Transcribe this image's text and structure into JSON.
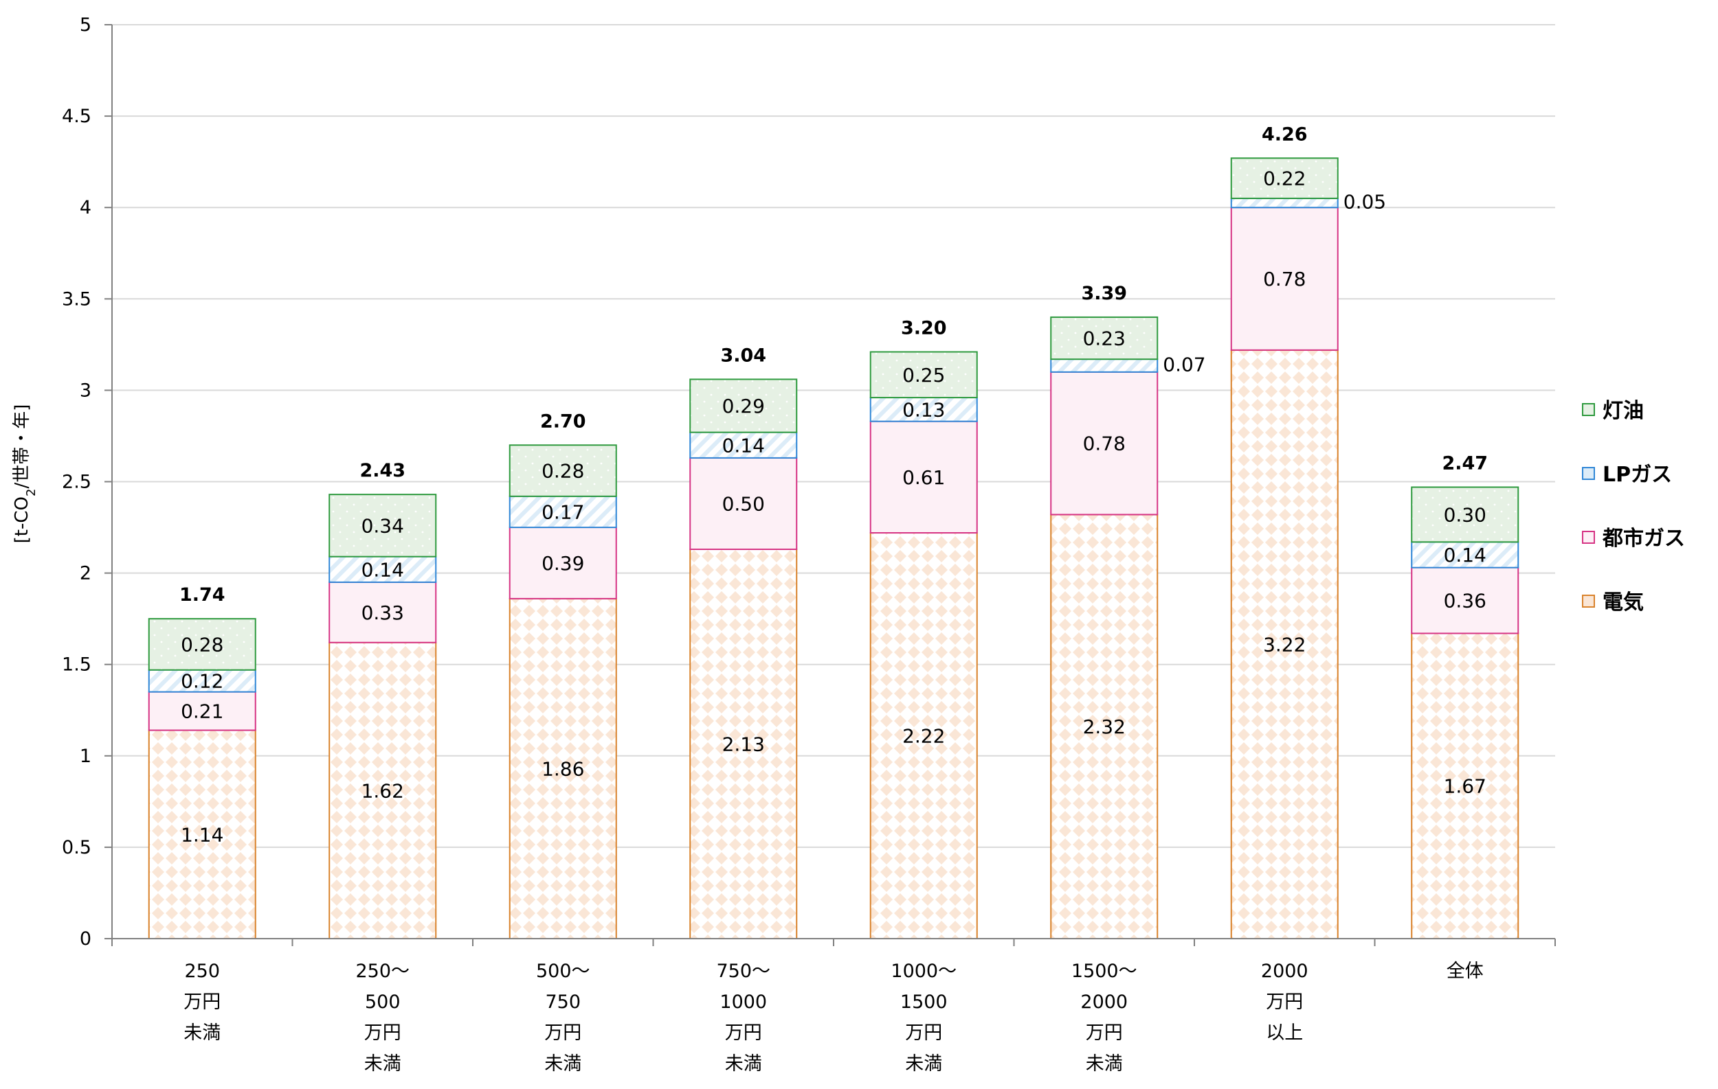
{
  "chart_data": {
    "type": "bar",
    "stacked": true,
    "title": "",
    "xlabel": "",
    "ylabel": "[t-CO2/世帯・年]",
    "ylabel_parts": {
      "pre": "[t-CO",
      "sub": "2",
      "post": "/世帯・年]"
    },
    "ylim": [
      0,
      5
    ],
    "yticks": [
      "0",
      "0.5",
      "1",
      "1.5",
      "2",
      "2.5",
      "3",
      "3.5",
      "4",
      "4.5",
      "5"
    ],
    "ytick_values": [
      0,
      0.5,
      1,
      1.5,
      2,
      2.5,
      3,
      3.5,
      4,
      4.5,
      5
    ],
    "grid": true,
    "legend_position": "right",
    "categories": [
      [
        "250",
        "万円",
        "未満"
      ],
      [
        "250～",
        "500",
        "万円",
        "未満"
      ],
      [
        "500～",
        "750",
        "万円",
        "未満"
      ],
      [
        "750～",
        "1000",
        "万円",
        "未満"
      ],
      [
        "1000～",
        "1500",
        "万円",
        "未満"
      ],
      [
        "1500～",
        "2000",
        "万円",
        "未満"
      ],
      [
        "2000",
        "万円",
        "以上"
      ],
      [
        "全体"
      ]
    ],
    "series": [
      {
        "name": "電気",
        "color": "#d9822b",
        "fill": "#fae6d6",
        "pattern": "diamond",
        "values": [
          1.14,
          1.62,
          1.86,
          2.13,
          2.22,
          2.32,
          3.22,
          1.67
        ],
        "labels": [
          "1.14",
          "1.62",
          "1.86",
          "2.13",
          "2.22",
          "2.32",
          "3.22",
          "1.67"
        ]
      },
      {
        "name": "都市ガス",
        "color": "#d63384",
        "fill": "#fdf0f6",
        "pattern": "solid",
        "values": [
          0.21,
          0.33,
          0.39,
          0.5,
          0.61,
          0.78,
          0.78,
          0.36
        ],
        "labels": [
          "0.21",
          "0.33",
          "0.39",
          "0.50",
          "0.61",
          "0.78",
          "0.78",
          "0.36"
        ]
      },
      {
        "name": "LPガス",
        "color": "#2f86d6",
        "fill": "#dcecf8",
        "pattern": "hatch",
        "values": [
          0.12,
          0.14,
          0.17,
          0.14,
          0.13,
          0.07,
          0.05,
          0.14
        ],
        "labels": [
          "0.12",
          "0.14",
          "0.17",
          "0.14",
          "0.13",
          "0.07",
          "0.05",
          "0.14"
        ]
      },
      {
        "name": "灯油",
        "color": "#2e9a3e",
        "fill": "#e6f1e4",
        "pattern": "dots",
        "values": [
          0.28,
          0.34,
          0.28,
          0.29,
          0.25,
          0.23,
          0.22,
          0.3
        ],
        "labels": [
          "0.28",
          "0.34",
          "0.28",
          "0.29",
          "0.25",
          "0.23",
          "0.22",
          "0.30"
        ]
      }
    ],
    "totals": [
      "1.74",
      "2.43",
      "2.70",
      "3.04",
      "3.20",
      "3.39",
      "4.26",
      "2.47"
    ],
    "legend_order": [
      "灯油",
      "LPガス",
      "都市ガス",
      "電気"
    ]
  }
}
